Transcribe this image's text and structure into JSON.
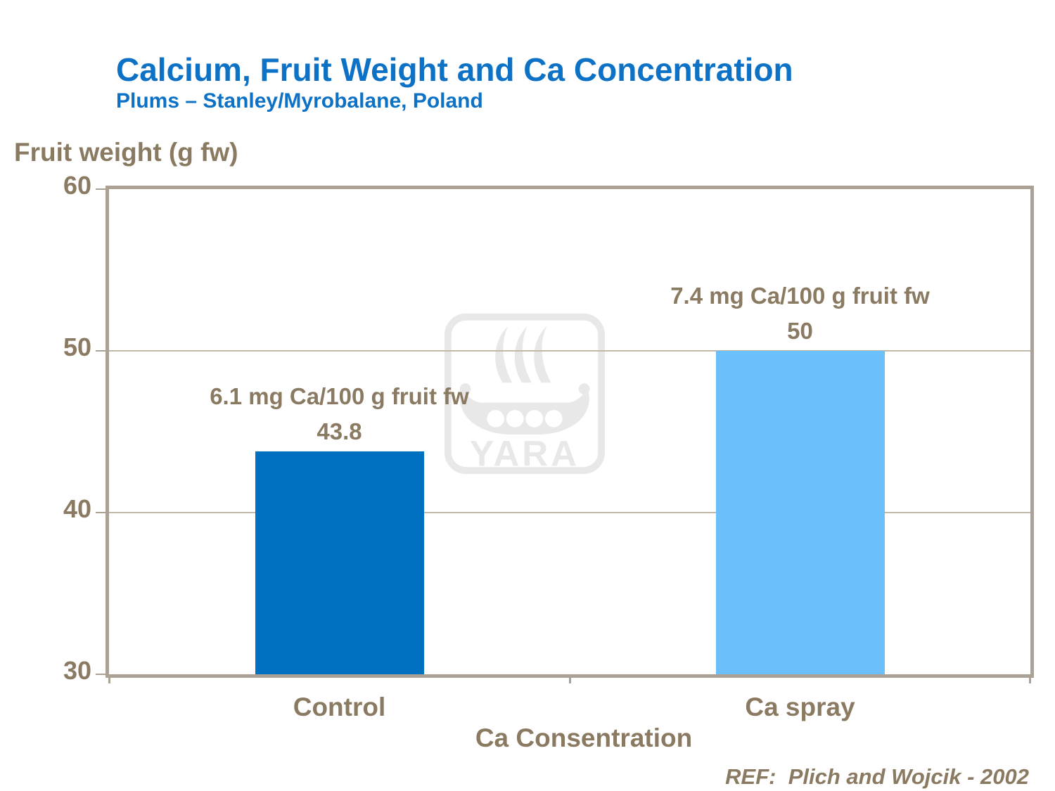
{
  "title": "Calcium, Fruit Weight and Ca Concentration",
  "subtitle": "Plums – Stanley/Myrobalane, Poland",
  "reference": "REF:  Plich and Wojcik - 2002",
  "watermark": {
    "brand": "YARA",
    "icon": "yara-viking-ship-logo"
  },
  "colors": {
    "title_blue": "#0D72C6",
    "text_brown": "#8B7A62",
    "axis_frame": "#ACA195",
    "gridline": "#C1B8AA",
    "bar_control": "#0070C0",
    "bar_ca_spray": "#6BBFFB",
    "watermark_gray": "#E8E8E8"
  },
  "chart_data": {
    "type": "bar",
    "title": "Calcium, Fruit Weight and Ca Concentration",
    "subtitle": "Plums – Stanley/Myrobalane, Poland",
    "categories": [
      "Control",
      "Ca spray"
    ],
    "values": [
      43.8,
      50
    ],
    "value_labels": [
      "43.8",
      "50"
    ],
    "annotations": [
      "6.1 mg Ca/100 g fruit fw",
      "7.4 mg Ca/100 g fruit fw"
    ],
    "bar_colors": [
      "#0070C0",
      "#6BBFFB"
    ],
    "xlabel": "Ca Consentration",
    "ylabel": "Fruit weight (g fw)",
    "ylim": [
      30,
      60
    ],
    "yticks": [
      30,
      40,
      50,
      60
    ],
    "grid": "horizontal",
    "legend": "none"
  }
}
